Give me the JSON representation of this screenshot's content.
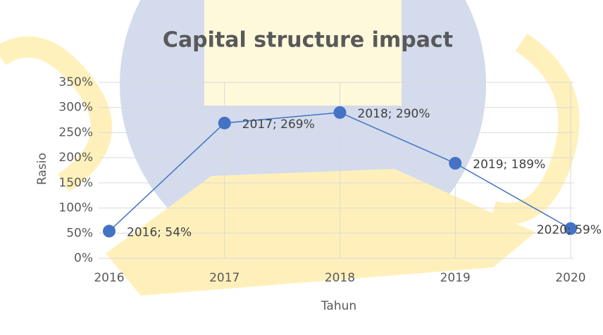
{
  "chart_data": {
    "type": "line",
    "title": "Capital structure impact",
    "x_label": "Tahun",
    "y_label": "Rasio",
    "categories": [
      "2016",
      "2017",
      "2018",
      "2019",
      "2020"
    ],
    "series": [
      {
        "name": "Rasio",
        "color": "#4472c4",
        "values": [
          54,
          269,
          290,
          189,
          59
        ],
        "value_labels": [
          "2016; 54%",
          "2017; 269%",
          "2018; 290%",
          "2019; 189%",
          "2020; 59%"
        ]
      }
    ],
    "ylim": [
      0,
      350
    ],
    "yticks": [
      {
        "value": 0,
        "label": "0%"
      },
      {
        "value": 50,
        "label": "50%"
      },
      {
        "value": 100,
        "label": "100%"
      },
      {
        "value": 150,
        "label": "150%"
      },
      {
        "value": 200,
        "label": "200%"
      },
      {
        "value": 250,
        "label": "250%"
      },
      {
        "value": 300,
        "label": "300%"
      },
      {
        "value": 350,
        "label": "350%"
      }
    ],
    "grid": true
  }
}
